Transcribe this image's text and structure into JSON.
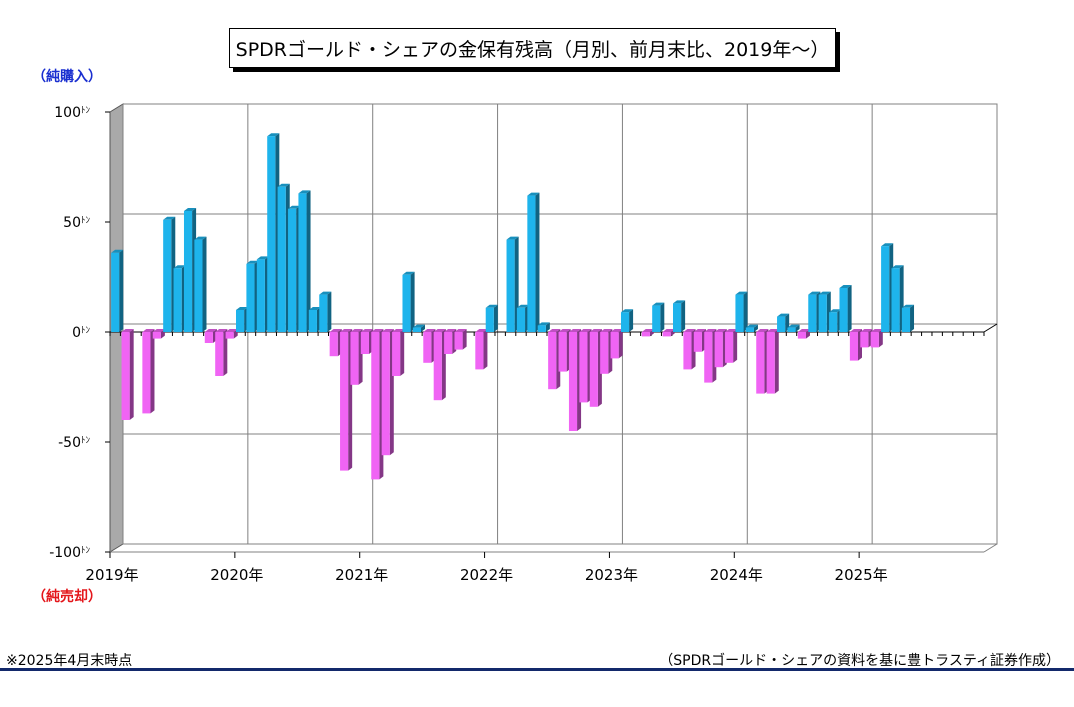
{
  "title": "SPDRゴールド・シェアの金保有残高（月別、前月末比、2019年～）",
  "label_buy": "（純購入）",
  "label_sell": "（純売却）",
  "note_left": "※2025年4月末時点",
  "note_right": "（SPDRゴールド・シェアの資料を基に豊トラスティ証券作成）",
  "colors": {
    "positive": "#1eb4ec",
    "negative": "#f064f4",
    "grid": "#808080",
    "wall": "#a9a9a9"
  },
  "chart_data": {
    "type": "bar",
    "ylabel_unit": "トン",
    "ylim": [
      -100,
      100
    ],
    "y_ticks": [
      {
        "value": 100,
        "label": "100ﾄﾝ"
      },
      {
        "value": 50,
        "label": "50ﾄﾝ"
      },
      {
        "value": 0,
        "label": "0ﾄﾝ"
      },
      {
        "value": -50,
        "label": "-50ﾄﾝ"
      },
      {
        "value": -100,
        "label": "-100ﾄﾝ"
      }
    ],
    "x_labels": [
      "2019年",
      "2020年",
      "2021年",
      "2022年",
      "2023年",
      "2024年",
      "2025年"
    ],
    "start": "2019-01",
    "values": [
      36,
      -40,
      0,
      -37,
      -3,
      51,
      29,
      55,
      42,
      -5,
      -20,
      -3,
      10,
      31,
      33,
      89,
      66,
      56,
      63,
      10,
      17,
      -11,
      -63,
      -24,
      -10,
      -67,
      -56,
      -20,
      26,
      2,
      -14,
      -31,
      -10,
      -8,
      0,
      -17,
      11,
      0,
      42,
      11,
      62,
      3,
      -26,
      -18,
      -45,
      -32,
      -34,
      -19,
      -12,
      9,
      0,
      -2,
      12,
      -2,
      13,
      -17,
      -9,
      -23,
      -16,
      -14,
      17,
      2,
      -28,
      -28,
      7,
      2,
      -3,
      17,
      17,
      9,
      20,
      -13,
      -7,
      -7,
      39,
      29,
      11
    ],
    "grid": true
  }
}
